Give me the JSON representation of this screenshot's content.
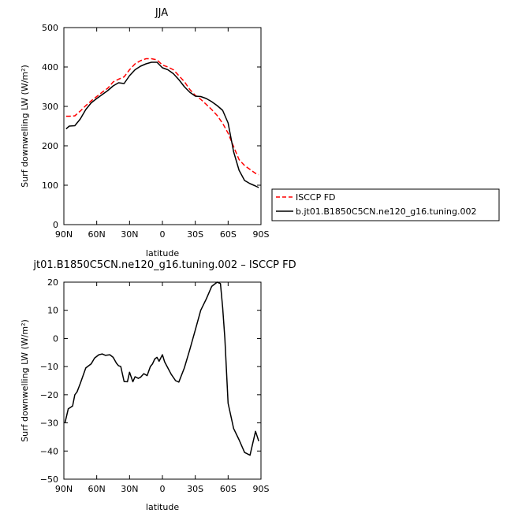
{
  "chart_data": [
    {
      "type": "line",
      "title": "JJA",
      "xlabel": "latitude",
      "ylabel": "Surf downwelling LW (W/m²)",
      "xlim": [
        90,
        -90
      ],
      "ylim": [
        0,
        500
      ],
      "x_ticks": [
        90,
        60,
        30,
        0,
        -30,
        -60,
        -90
      ],
      "x_tick_labels": [
        "90N",
        "60N",
        "30N",
        "0",
        "30S",
        "60S",
        "90S"
      ],
      "y_ticks": [
        0,
        100,
        200,
        300,
        400,
        500
      ],
      "y_tick_labels": [
        "0",
        "100",
        "200",
        "300",
        "400",
        "500"
      ],
      "legend_position": "right-lower",
      "series": [
        {
          "name": "ISCCP FD",
          "color": "#ff0000",
          "dash": true,
          "x": [
            88,
            85,
            80,
            75,
            70,
            65,
            60,
            55,
            50,
            45,
            40,
            35,
            30,
            25,
            20,
            15,
            10,
            5,
            0,
            -5,
            -10,
            -15,
            -20,
            -25,
            -30,
            -35,
            -40,
            -45,
            -50,
            -55,
            -60,
            -65,
            -70,
            -75,
            -80,
            -85,
            -88
          ],
          "y": [
            275,
            275,
            276,
            288,
            302,
            314,
            325,
            336,
            346,
            362,
            369,
            375,
            393,
            408,
            416,
            421,
            421,
            418,
            405,
            400,
            393,
            378,
            363,
            343,
            328,
            318,
            305,
            292,
            277,
            257,
            232,
            198,
            165,
            150,
            140,
            130,
            127
          ]
        },
        {
          "name": "b.jt01.B1850C5CN.ne120_g16.tuning.002",
          "color": "#000000",
          "dash": false,
          "x": [
            88,
            85,
            80,
            75,
            70,
            65,
            60,
            55,
            50,
            45,
            40,
            35,
            30,
            25,
            20,
            15,
            10,
            5,
            0,
            -5,
            -10,
            -15,
            -20,
            -25,
            -30,
            -35,
            -40,
            -45,
            -50,
            -55,
            -60,
            -65,
            -70,
            -75,
            -80,
            -85,
            -88
          ],
          "y": [
            243,
            250,
            251,
            268,
            292,
            309,
            320,
            330,
            340,
            352,
            360,
            358,
            378,
            393,
            402,
            408,
            412,
            412,
            398,
            393,
            383,
            368,
            350,
            336,
            326,
            325,
            320,
            312,
            302,
            290,
            258,
            185,
            138,
            112,
            104,
            98,
            94
          ]
        }
      ]
    },
    {
      "type": "line",
      "title": "jt01.B1850C5CN.ne120_g16.tuning.002 – ISCCP FD",
      "xlabel": "latitude",
      "ylabel": "Surf downwelling LW (W/m²)",
      "xlim": [
        90,
        -90
      ],
      "ylim": [
        -50,
        20
      ],
      "x_ticks": [
        90,
        60,
        30,
        0,
        -30,
        -60,
        -90
      ],
      "x_tick_labels": [
        "90N",
        "60N",
        "30N",
        "0",
        "30S",
        "60S",
        "90S"
      ],
      "y_ticks": [
        -50,
        -40,
        -30,
        -20,
        -10,
        0,
        10,
        20
      ],
      "y_tick_labels": [
        "−50",
        "−40",
        "−30",
        "−20",
        "−10",
        "0",
        "10",
        "20"
      ],
      "series": [
        {
          "color": "#000000",
          "dash": false,
          "x": [
            89,
            86,
            82,
            80,
            78,
            75,
            70,
            65,
            62,
            58,
            55,
            52,
            48,
            45,
            42,
            40,
            38,
            35,
            32,
            30,
            27,
            25,
            22,
            20,
            17,
            14,
            11,
            9,
            7,
            5,
            3,
            0,
            -2,
            -5,
            -8,
            -12,
            -15,
            -20,
            -25,
            -30,
            -35,
            -40,
            -45,
            -50,
            -53,
            -55,
            -57,
            -60,
            -65,
            -70,
            -75,
            -80,
            -85,
            -88
          ],
          "y": [
            -30,
            -25,
            -24,
            -20,
            -19,
            -16,
            -10.5,
            -9,
            -7,
            -5.8,
            -5.5,
            -6,
            -5.8,
            -6.7,
            -8.8,
            -9.7,
            -10,
            -15.3,
            -15.4,
            -12,
            -15.4,
            -13.6,
            -14.2,
            -13.8,
            -12.5,
            -13.2,
            -10,
            -9,
            -7.3,
            -6.7,
            -8.1,
            -5.8,
            -8.3,
            -10.5,
            -12.7,
            -15,
            -15.5,
            -10.5,
            -4,
            3,
            10,
            14,
            18.5,
            20,
            19.5,
            11,
            0,
            -23,
            -32,
            -36,
            -40.5,
            -41.5,
            -33,
            -36.5
          ]
        }
      ]
    }
  ]
}
